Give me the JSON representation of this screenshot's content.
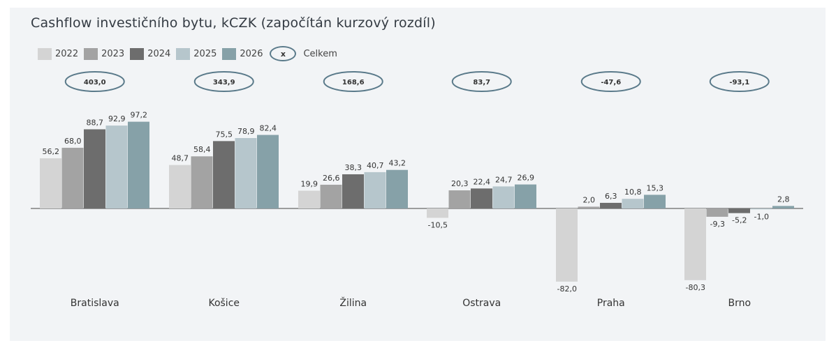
{
  "title": "Cashflow investičního bytu, kCZK (započítán kurzový rozdíl)",
  "legend": {
    "series": [
      {
        "name": "2022",
        "color": "#d4d4d4"
      },
      {
        "name": "2023",
        "color": "#a3a3a3"
      },
      {
        "name": "2024",
        "color": "#6d6d6d"
      },
      {
        "name": "2025",
        "color": "#b6c6cc"
      },
      {
        "name": "2026",
        "color": "#86a1a8"
      }
    ],
    "total_marker": "x",
    "total_label": "Celkem"
  },
  "chart_data": {
    "type": "bar",
    "categories": [
      "Bratislava",
      "Košice",
      "Žilina",
      "Ostrava",
      "Praha",
      "Brno"
    ],
    "series": [
      {
        "name": "2022",
        "values": [
          56.2,
          48.7,
          19.9,
          -10.5,
          -82.0,
          -80.3
        ],
        "labels": [
          "56,2",
          "48,7",
          "19,9",
          "-10,5",
          "-82,0",
          "-80,3"
        ]
      },
      {
        "name": "2023",
        "values": [
          68.0,
          58.4,
          26.6,
          20.3,
          2.0,
          -9.3
        ],
        "labels": [
          "68,0",
          "58,4",
          "26,6",
          "20,3",
          "2,0",
          "-9,3"
        ]
      },
      {
        "name": "2024",
        "values": [
          88.7,
          75.5,
          38.3,
          22.4,
          6.3,
          -5.2
        ],
        "labels": [
          "88,7",
          "75,5",
          "38,3",
          "22,4",
          "6,3",
          "-5,2"
        ]
      },
      {
        "name": "2025",
        "values": [
          92.9,
          78.9,
          40.7,
          24.7,
          10.8,
          -1.0
        ],
        "labels": [
          "92,9",
          "78,9",
          "40,7",
          "24,7",
          "10,8",
          "-1,0"
        ]
      },
      {
        "name": "2026",
        "values": [
          97.2,
          82.4,
          43.2,
          26.9,
          15.3,
          2.8
        ],
        "labels": [
          "97,2",
          "82,4",
          "43,2",
          "26,9",
          "15,3",
          "2,8"
        ]
      }
    ],
    "totals": [
      403.0,
      343.9,
      168.6,
      83.7,
      -47.6,
      -93.1
    ],
    "total_labels": [
      "403,0",
      "343,9",
      "168,6",
      "83,7",
      "-47,6",
      "-93,1"
    ],
    "ylim": [
      -90,
      100
    ],
    "grid": false,
    "legend_position": "top-left"
  }
}
